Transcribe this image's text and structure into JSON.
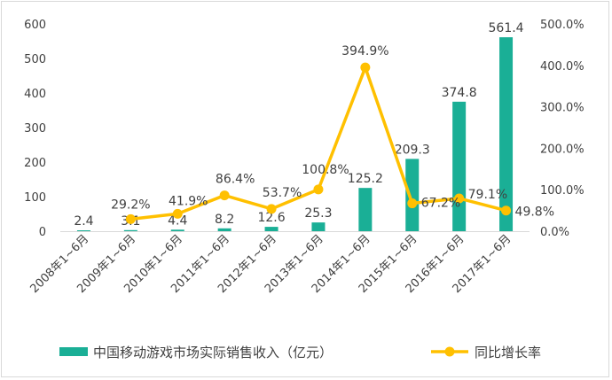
{
  "chart_data": {
    "type": "bar",
    "categories": [
      "2008年1~6月",
      "2009年1~6月",
      "2010年1~6月",
      "2011年1~6月",
      "2012年1~6月",
      "2013年1~6月",
      "2014年1~6月",
      "2015年1~6月",
      "2016年1~6月",
      "2017年1~6月"
    ],
    "series": [
      {
        "name": "中国移动游戏市场实际销售收入（亿元）",
        "type": "bar",
        "axis": "left",
        "color": "#1aaf96",
        "values": [
          2.4,
          3.1,
          4.4,
          8.2,
          12.6,
          25.3,
          125.2,
          209.3,
          374.8,
          561.4
        ],
        "labels": [
          "2.4",
          "3.1",
          "4.4",
          "8.2",
          "12.6",
          "25.3",
          "125.2",
          "209.3",
          "374.8",
          "561.4"
        ]
      },
      {
        "name": "同比增长率",
        "type": "line",
        "axis": "right",
        "color": "#ffc000",
        "values": [
          null,
          29.2,
          41.9,
          86.4,
          53.7,
          100.8,
          394.9,
          67.2,
          79.1,
          49.8
        ],
        "labels": [
          "",
          "29.2%",
          "41.9%",
          "86.4%",
          "53.7%",
          "100.8%",
          "394.9%",
          "67.2%",
          "79.1%",
          "49.8%"
        ]
      }
    ],
    "y_left": {
      "ylim": [
        0,
        600
      ],
      "ticks": [
        "0",
        "100",
        "200",
        "300",
        "400",
        "500",
        "600"
      ]
    },
    "y_right": {
      "ylim": [
        0,
        500
      ],
      "ticks": [
        "0.0%",
        "100.0%",
        "200.0%",
        "300.0%",
        "400.0%",
        "500.0%"
      ]
    },
    "grid": false,
    "legend_position": "bottom"
  }
}
